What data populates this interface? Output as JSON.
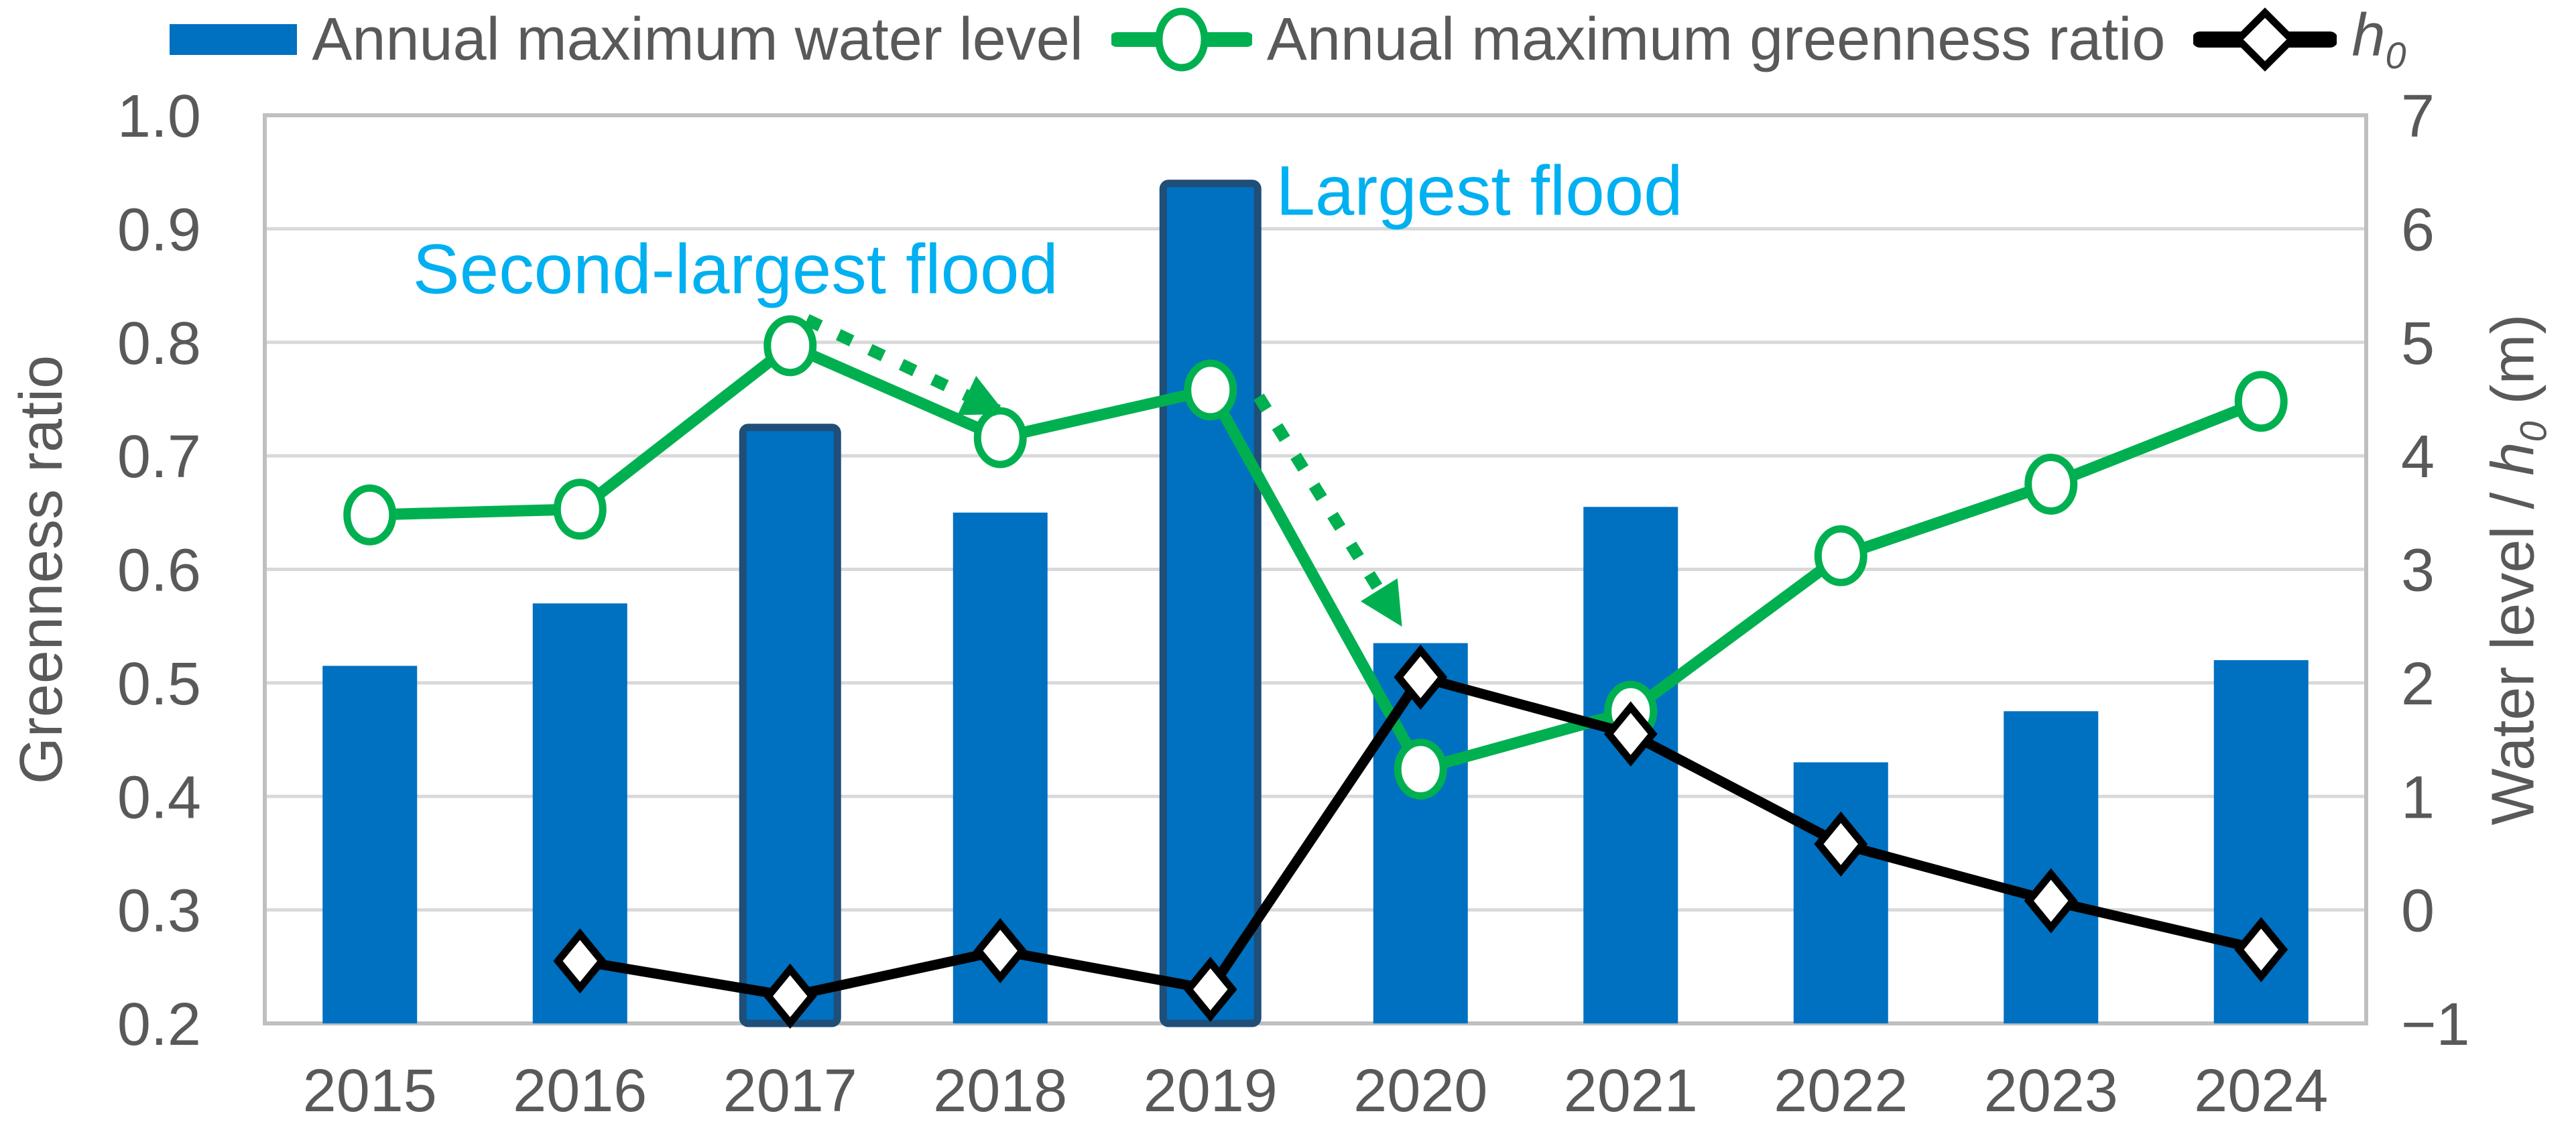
{
  "colors": {
    "bar_fill": "#0070C0",
    "bar_outline": "#1F4E79",
    "green": "#00B050",
    "black": "#000000",
    "cyan": "#00B0F0",
    "text_gray": "#595959",
    "gridline": "#D9D9D9",
    "plot_border": "#BFBFBF"
  },
  "legend": {
    "water_level_label": "Annual maximum water level",
    "greenness_label": "Annual maximum greenness ratio",
    "h0_label_main": "h",
    "h0_label_sub": "0"
  },
  "axes": {
    "left_title": "Greenness ratio",
    "left_ticks": [
      "1.0",
      "0.9",
      "0.8",
      "0.7",
      "0.6",
      "0.5",
      "0.4",
      "0.3",
      "0.2"
    ],
    "right_title_prefix": "Water level / ",
    "right_title_h": "h",
    "right_title_sub": "0",
    "right_title_suffix": " (m)",
    "right_ticks": [
      "7",
      "6",
      "5",
      "4",
      "3",
      "2",
      "1",
      "0",
      "−1"
    ]
  },
  "chart_data": {
    "type": "combo",
    "categories": [
      "2015",
      "2016",
      "2017",
      "2018",
      "2019",
      "2020",
      "2021",
      "2022",
      "2023",
      "2024"
    ],
    "series": [
      {
        "name": "Annual maximum water level",
        "type": "bar",
        "axis": "right",
        "values": [
          2.15,
          2.7,
          4.25,
          3.5,
          6.4,
          2.35,
          3.55,
          1.3,
          1.75,
          2.2
        ],
        "outlined_categories": [
          "2017",
          "2019"
        ]
      },
      {
        "name": "Annual maximum greenness ratio",
        "type": "line",
        "axis": "left",
        "marker": "circle",
        "values": [
          0.648,
          0.653,
          0.797,
          0.716,
          0.758,
          0.424,
          0.475,
          0.612,
          0.675,
          0.748
        ]
      },
      {
        "name": "h0",
        "type": "line",
        "axis": "right",
        "marker": "diamond",
        "values": [
          null,
          -0.45,
          -0.76,
          -0.36,
          -0.7,
          2.05,
          1.55,
          0.58,
          0.08,
          -0.35
        ]
      }
    ],
    "left_axis": {
      "title": "Greenness ratio",
      "min": 0.2,
      "max": 1.0,
      "step": 0.1
    },
    "right_axis": {
      "title": "Water level / h0 (m)",
      "min": -1,
      "max": 7,
      "step": 1
    },
    "grid": true,
    "legend_position": "top",
    "annotations": [
      {
        "text": "Second-largest flood",
        "x_index": 1.74,
        "y_value": 0.864
      },
      {
        "text": "Largest flood",
        "x_index": 5.28,
        "y_value": 0.933
      }
    ],
    "arrows": [
      {
        "from": {
          "x_index": 2.08,
          "y_value": 0.82
        },
        "to": {
          "x_index": 2.99,
          "y_value": 0.74
        }
      },
      {
        "from": {
          "x_index": 4.23,
          "y_value": 0.752
        },
        "to": {
          "x_index": 4.89,
          "y_value": 0.556
        }
      }
    ]
  }
}
